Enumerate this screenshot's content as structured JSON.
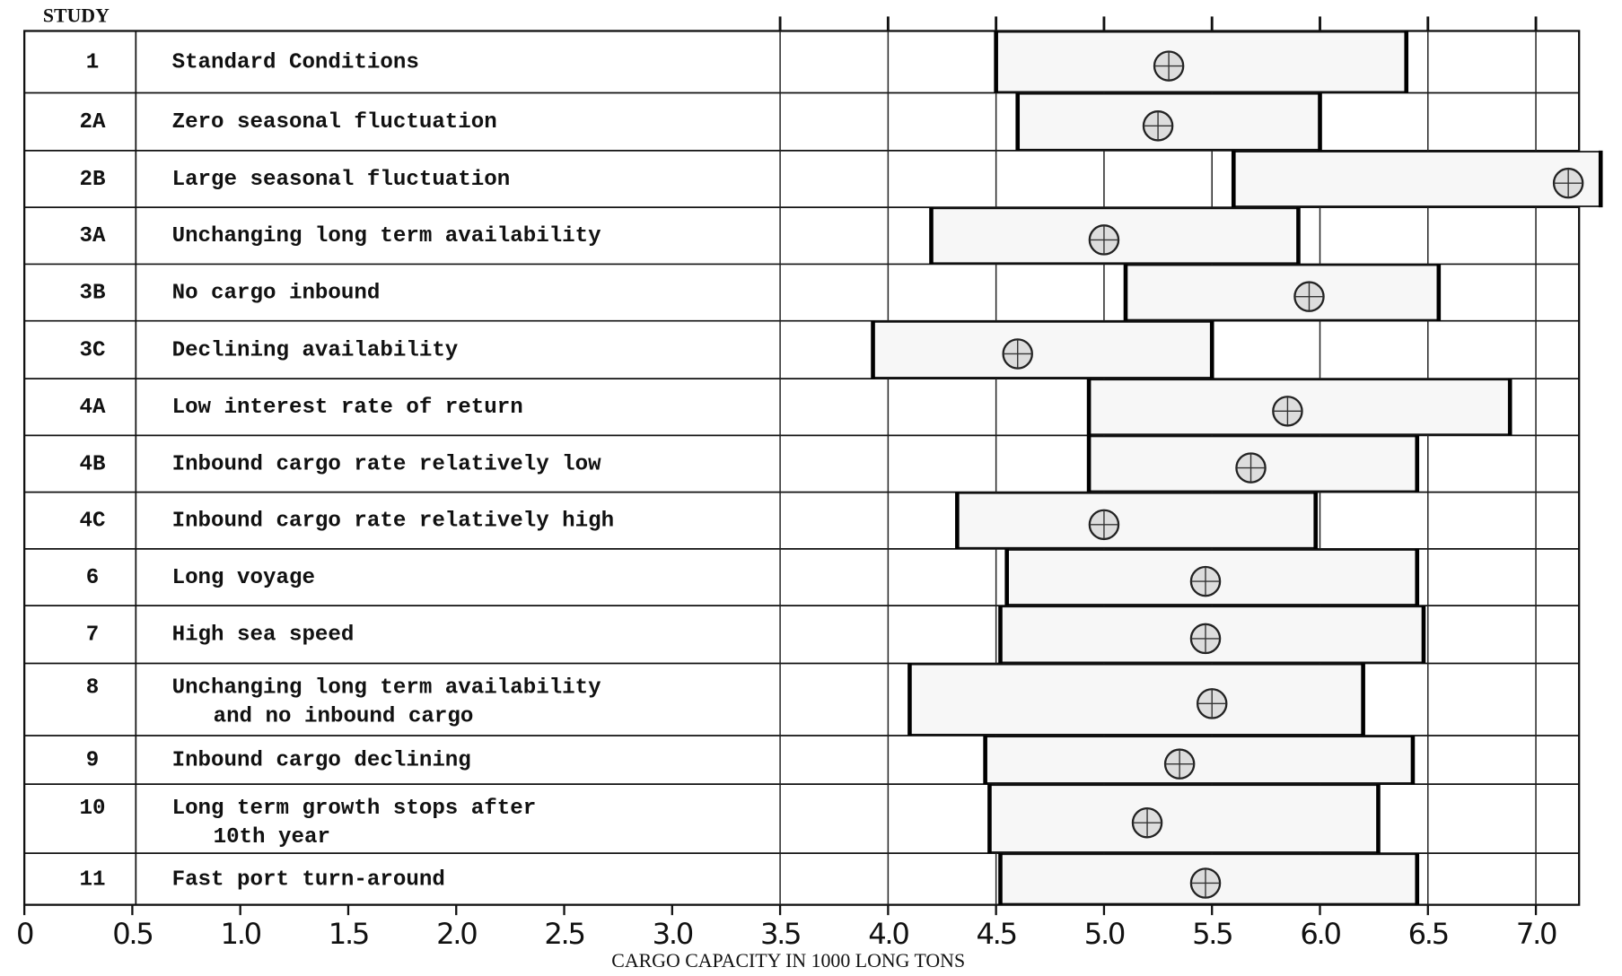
{
  "chart_data": {
    "type": "range",
    "column_header": "STUDY",
    "studies": [
      "1",
      "2A",
      "2B",
      "3A",
      "3B",
      "3C",
      "4A",
      "4B",
      "4C",
      "6",
      "7",
      "8",
      "9",
      "10",
      "11"
    ],
    "descriptions": [
      [
        "Standard Conditions"
      ],
      [
        "Zero seasonal fluctuation"
      ],
      [
        "Large seasonal fluctuation"
      ],
      [
        "Unchanging long term availability"
      ],
      [
        "No cargo inbound"
      ],
      [
        "Declining availability"
      ],
      [
        "Low interest rate of return"
      ],
      [
        "Inbound cargo rate relatively low"
      ],
      [
        "Inbound cargo rate relatively high"
      ],
      [
        "Long voyage"
      ],
      [
        "High sea speed"
      ],
      [
        "Unchanging long term availability",
        "and no inbound cargo"
      ],
      [
        "Inbound cargo declining"
      ],
      [
        "Long term growth stops after",
        "10th year"
      ],
      [
        "Fast port turn-around"
      ]
    ],
    "low": [
      4.5,
      4.6,
      5.6,
      4.2,
      5.1,
      3.93,
      4.93,
      4.93,
      4.32,
      4.55,
      4.52,
      4.1,
      4.45,
      4.47,
      4.52
    ],
    "high": [
      6.4,
      6.0,
      7.3,
      5.9,
      6.55,
      5.5,
      6.88,
      6.45,
      5.98,
      6.45,
      6.48,
      6.2,
      6.43,
      6.27,
      6.45
    ],
    "optimum": [
      5.3,
      5.25,
      7.15,
      5.0,
      5.95,
      4.6,
      5.85,
      5.68,
      5.0,
      5.47,
      5.47,
      5.5,
      5.35,
      5.2,
      5.47
    ],
    "xlim": [
      0,
      7.2
    ],
    "xticks": [
      0,
      0.5,
      {
        "value": 1,
        "label": "1.0"
      },
      1.5,
      {
        "value": 2,
        "label": "2.0"
      },
      2.5,
      {
        "value": 3,
        "label": "3.0"
      },
      3.5,
      {
        "value": 4,
        "label": "4.0"
      },
      4.5,
      {
        "value": 5,
        "label": "5.0"
      },
      5.5,
      {
        "value": 6,
        "label": "6.0"
      },
      6.5,
      {
        "value": 7,
        "label": "7.0"
      }
    ],
    "xlabel": "CARGO CAPACITY IN 1000 LONG TONS"
  }
}
